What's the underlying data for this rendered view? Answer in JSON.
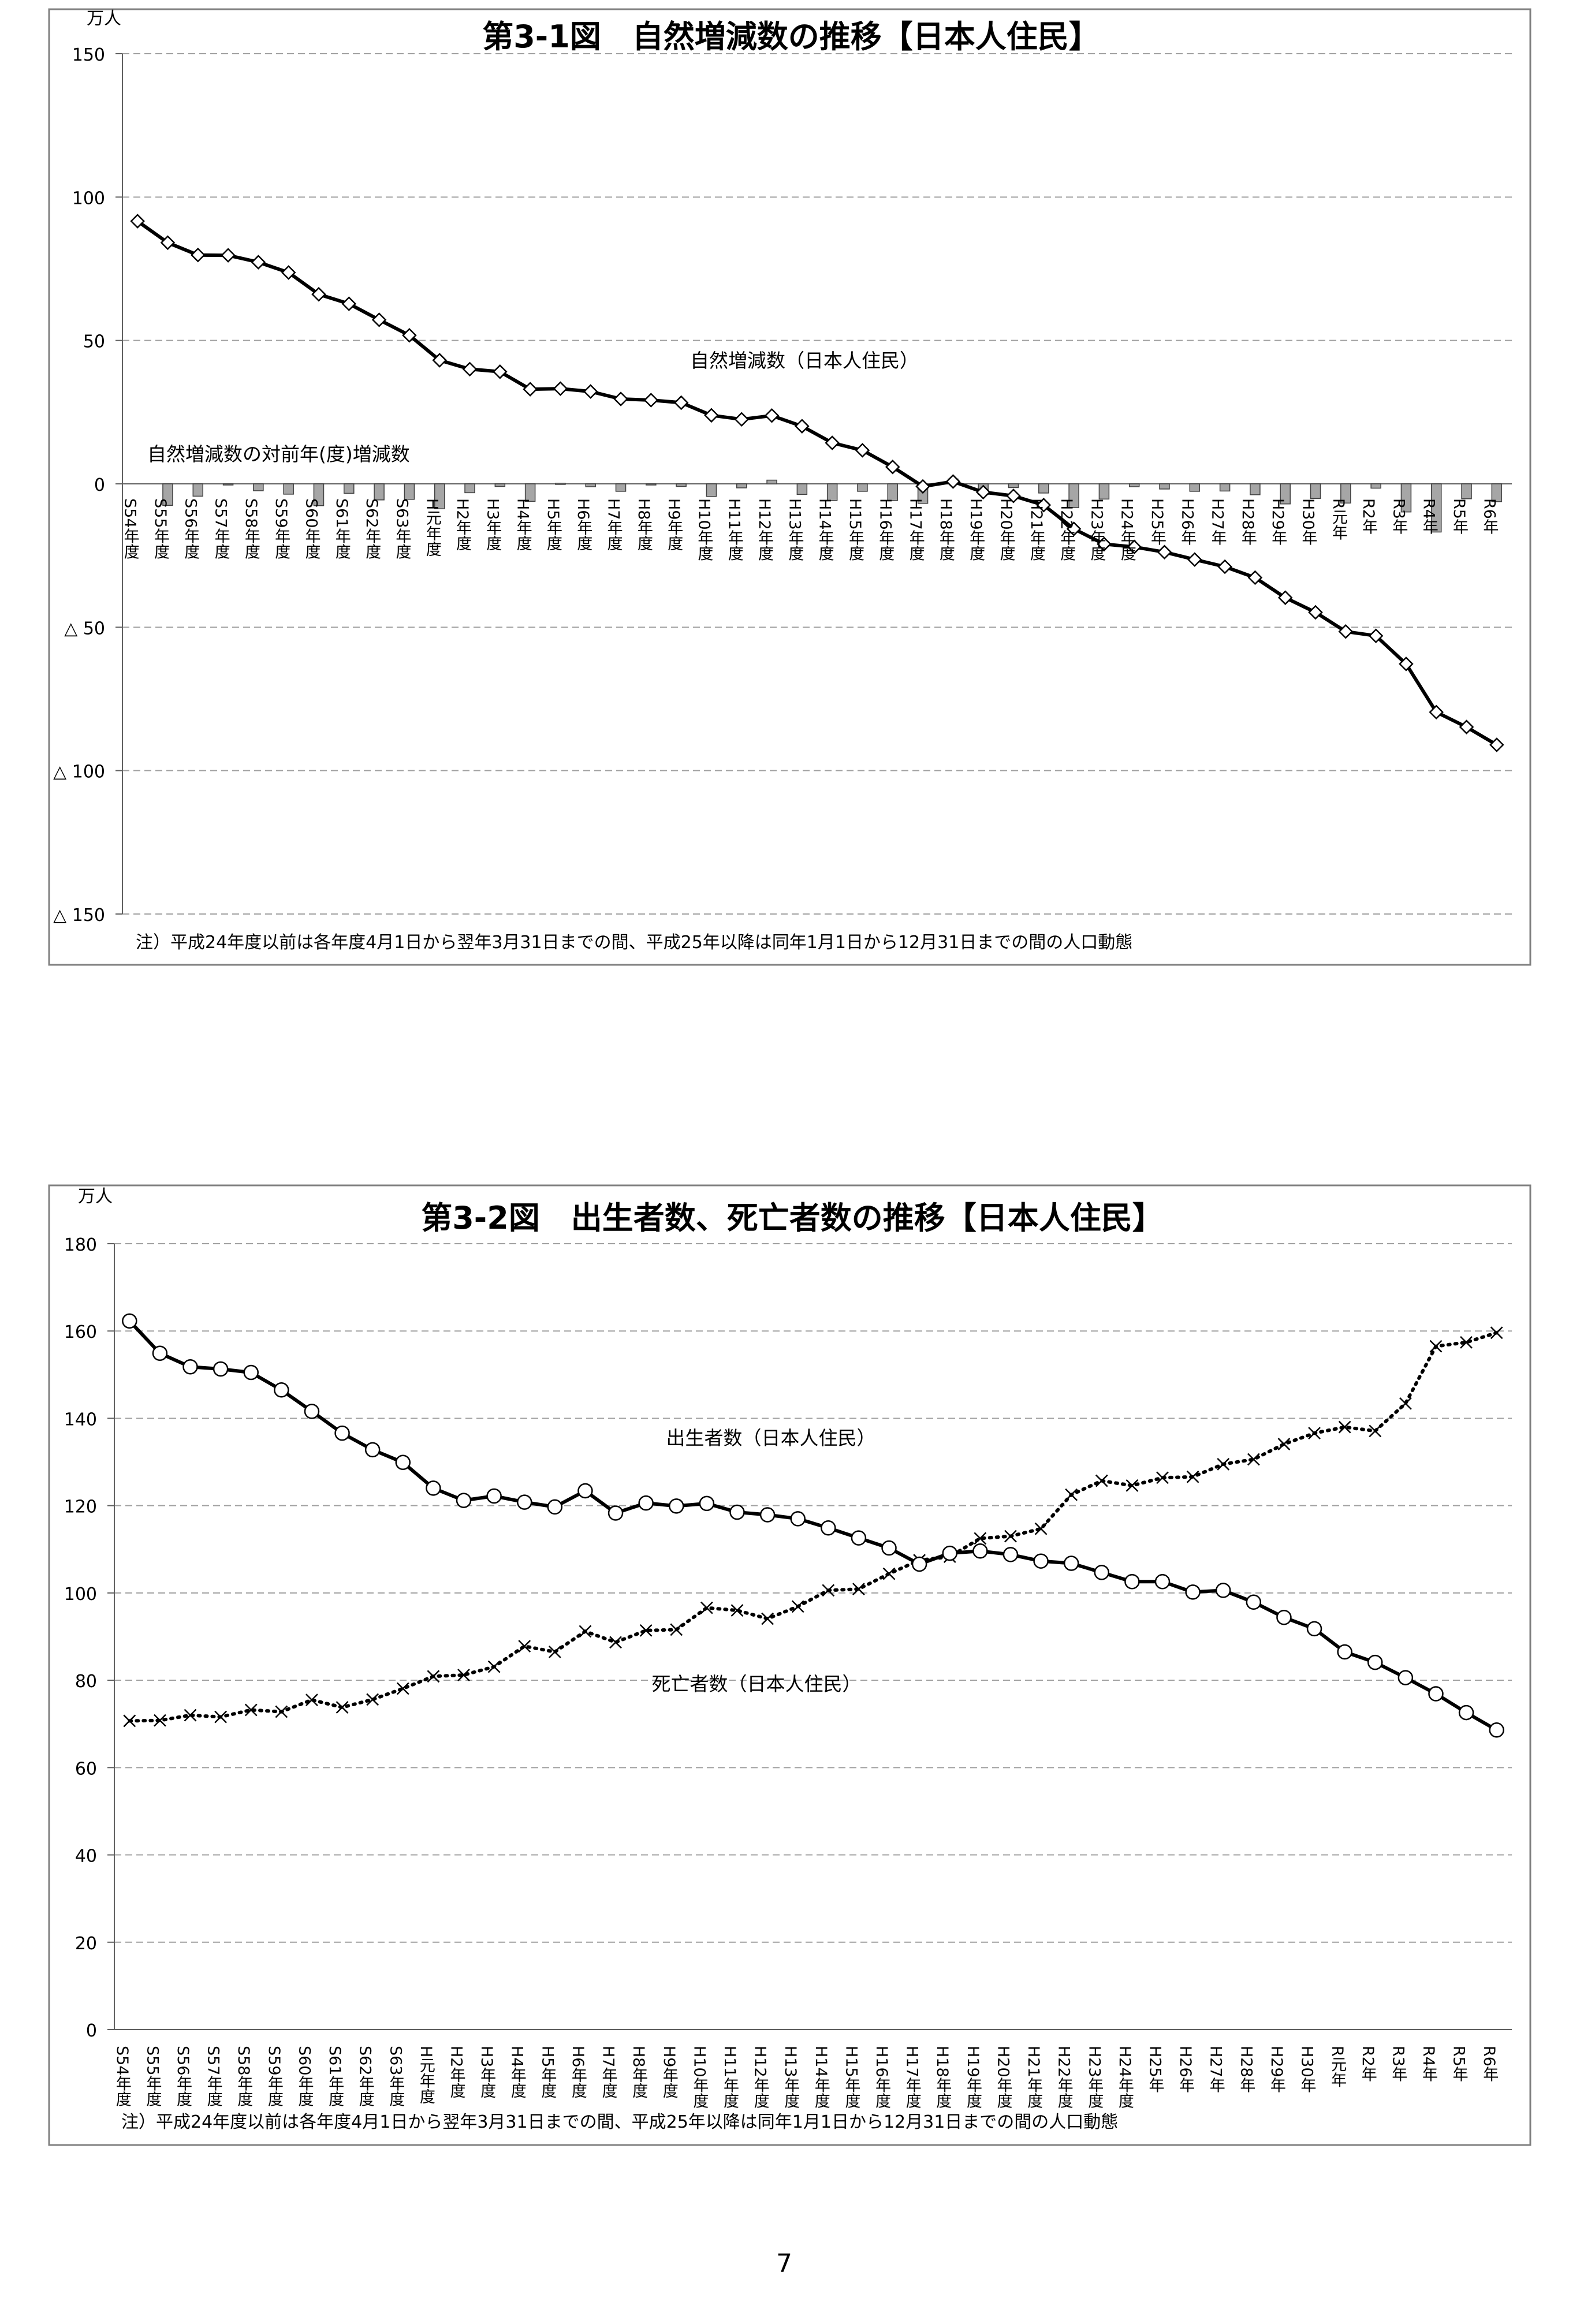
{
  "page_number": "7",
  "categories": [
    "S54年度",
    "S55年度",
    "S56年度",
    "S57年度",
    "S58年度",
    "S59年度",
    "S60年度",
    "S61年度",
    "S62年度",
    "S63年度",
    "H元年度",
    "H2年度",
    "H3年度",
    "H4年度",
    "H5年度",
    "H6年度",
    "H7年度",
    "H8年度",
    "H9年度",
    "H10年度",
    "H11年度",
    "H12年度",
    "H13年度",
    "H14年度",
    "H15年度",
    "H16年度",
    "H17年度",
    "H18年度",
    "H19年度",
    "H20年度",
    "H21年度",
    "H22年度",
    "H23年度",
    "H24年度",
    "H25年",
    "H26年",
    "H27年",
    "H28年",
    "H29年",
    "H30年",
    "R元年",
    "R2年",
    "R3年",
    "R4年",
    "R5年",
    "R6年"
  ],
  "chart_data": [
    {
      "type": "line",
      "title": "第3-1図　自然増減数の推移【日本人住民】",
      "unit": "万人",
      "ylim": [
        -150,
        150
      ],
      "yticks": [
        150,
        100,
        50,
        0,
        -50,
        -100,
        -150
      ],
      "ytick_labels": [
        "150",
        "100",
        "50",
        "0",
        "△ 50",
        "△ 100",
        "△ 150"
      ],
      "grid": true,
      "series": [
        {
          "name": "自然増減数（日本人住民）",
          "type": "line",
          "marker": "diamond",
          "values": [
            91.6,
            84.1,
            79.8,
            79.7,
            77.3,
            73.7,
            66.1,
            62.8,
            57.2,
            51.8,
            43.1,
            40.0,
            39.1,
            33.0,
            33.2,
            32.2,
            29.6,
            29.2,
            28.3,
            23.9,
            22.5,
            23.8,
            20.1,
            14.3,
            11.7,
            5.9,
            -0.9,
            0.8,
            -2.9,
            -4.2,
            -7.4,
            -15.7,
            -21.0,
            -22.0,
            -23.8,
            -26.4,
            -28.9,
            -32.7,
            -39.7,
            -44.8,
            -51.5,
            -53.0,
            -62.8,
            -79.6,
            -84.8,
            -91.0
          ]
        },
        {
          "name": "自然増減数の対前年(度)増減数",
          "type": "bar",
          "values": [
            null,
            -7.5,
            -4.3,
            -0.1,
            -2.4,
            -3.6,
            -7.6,
            -3.3,
            -5.6,
            -5.4,
            -8.7,
            -3.1,
            -0.9,
            -6.1,
            0.2,
            -1.0,
            -2.6,
            -0.4,
            -0.9,
            -4.4,
            -1.4,
            1.3,
            -3.7,
            -5.8,
            -2.6,
            -5.8,
            -6.8,
            1.7,
            -3.7,
            -1.3,
            -3.2,
            -8.3,
            -5.3,
            -1.0,
            -1.8,
            -2.6,
            -2.5,
            -3.8,
            -7.0,
            -5.1,
            -6.7,
            -1.5,
            -9.8,
            -16.8,
            -5.2,
            -6.2
          ]
        }
      ],
      "note": "注）平成24年度以前は各年度4月1日から翌年3月31日までの間、平成25年以降は同年1月1日から12月31日までの間の人口動態"
    },
    {
      "type": "line",
      "title": "第3-2図　出生者数、死亡者数の推移【日本人住民】",
      "unit": "万人",
      "ylim": [
        0,
        180
      ],
      "yticks": [
        0,
        20,
        40,
        60,
        80,
        100,
        120,
        140,
        160,
        180
      ],
      "ytick_labels": [
        "0",
        "20",
        "40",
        "60",
        "80",
        "100",
        "120",
        "140",
        "160",
        "180"
      ],
      "grid": true,
      "series": [
        {
          "name": "出生者数（日本人住民）",
          "type": "line",
          "marker": "circle",
          "values": [
            162.3,
            154.9,
            151.8,
            151.3,
            150.5,
            146.5,
            141.6,
            136.6,
            132.8,
            129.9,
            124.0,
            121.2,
            122.2,
            120.8,
            119.7,
            123.4,
            118.3,
            120.6,
            119.9,
            120.5,
            118.5,
            117.9,
            117.0,
            114.9,
            112.6,
            110.3,
            106.6,
            109.1,
            109.6,
            108.8,
            107.3,
            106.8,
            104.7,
            102.6,
            102.6,
            100.2,
            100.6,
            97.9,
            94.4,
            91.8,
            86.5,
            84.1,
            80.6,
            76.9,
            72.6,
            68.6
          ]
        },
        {
          "name": "死亡者数（日本人住民）",
          "type": "line",
          "marker": "cross",
          "values": [
            70.7,
            70.8,
            72.0,
            71.6,
            73.2,
            72.8,
            75.5,
            73.8,
            75.6,
            78.1,
            80.9,
            81.2,
            83.1,
            87.8,
            86.5,
            91.2,
            88.7,
            91.4,
            91.6,
            96.6,
            96.0,
            94.1,
            96.9,
            100.6,
            100.9,
            104.4,
            107.5,
            108.3,
            112.5,
            113.0,
            114.7,
            122.5,
            125.7,
            124.6,
            126.4,
            126.6,
            129.5,
            130.6,
            134.1,
            136.6,
            138.0,
            137.1,
            143.4,
            156.5,
            157.4,
            159.6
          ]
        }
      ],
      "note": "注）平成24年度以前は各年度4月1日から翌年3月31日までの間、平成25年以降は同年1月1日から12月31日までの間の人口動態"
    }
  ]
}
